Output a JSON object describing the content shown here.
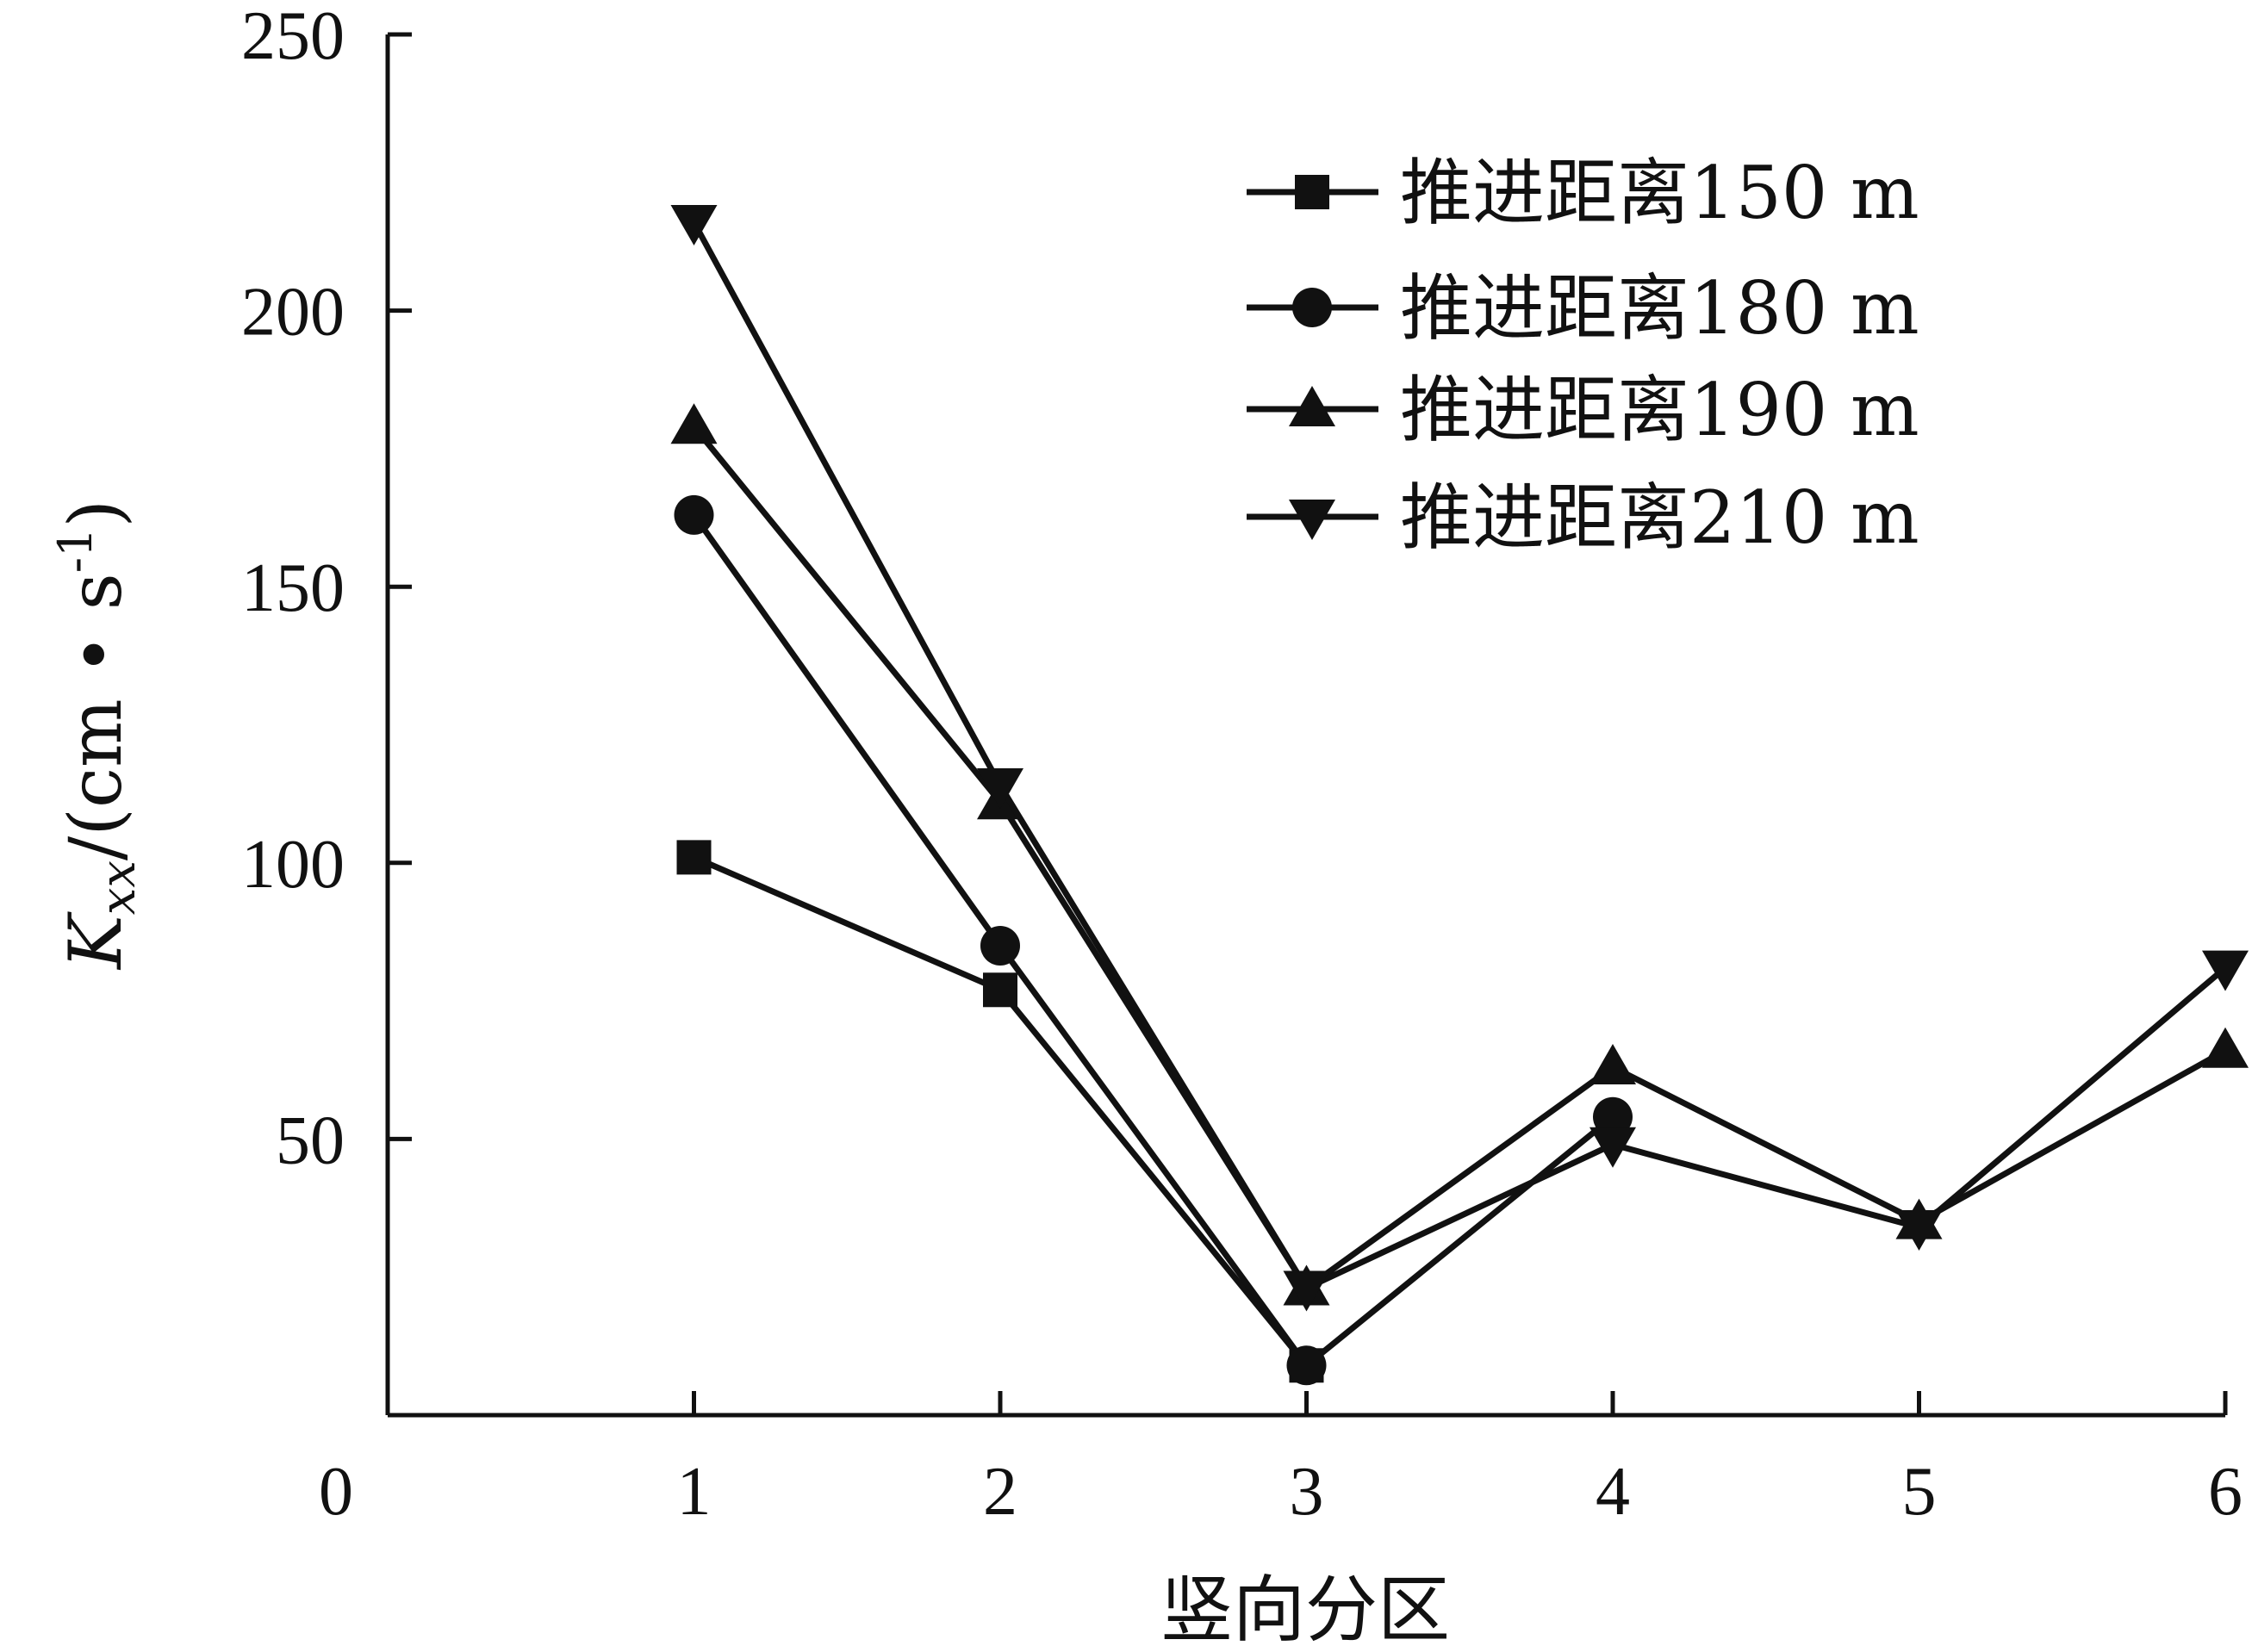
{
  "chart_data": {
    "type": "line",
    "x": [
      1,
      2,
      3,
      4,
      5,
      6
    ],
    "xlim": [
      0,
      6
    ],
    "ylim": [
      0,
      250
    ],
    "x_ticks": [
      "0",
      "1",
      "2",
      "3",
      "4",
      "5",
      "6"
    ],
    "y_ticks": [
      "50",
      "100",
      "150",
      "200",
      "250"
    ],
    "xlabel": "竖向分区",
    "ylabel": {
      "main": "K",
      "subscript": "xx",
      "unit_prefix": "/(cm • s",
      "unit_superscript": "-1",
      "unit_suffix": ")"
    },
    "legend_position": "top-right",
    "series": [
      {
        "name": "推进距离150 m",
        "marker": "square",
        "values": [
          101,
          77,
          9,
          null,
          null,
          null
        ]
      },
      {
        "name": "推进距离180 m",
        "marker": "circle",
        "values": [
          163,
          85,
          9,
          54,
          null,
          null
        ]
      },
      {
        "name": "推进距离190 m",
        "marker": "triangle-up",
        "values": [
          179,
          111,
          23,
          63,
          35,
          66
        ]
      },
      {
        "name": "推进距离210 m",
        "marker": "triangle-down",
        "values": [
          216,
          114,
          23,
          49,
          34,
          81
        ]
      }
    ],
    "colors": {
      "line": "#111111",
      "axis": "#111111"
    }
  }
}
